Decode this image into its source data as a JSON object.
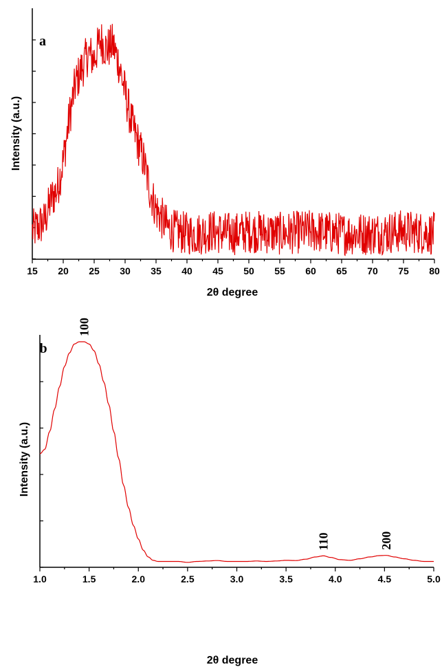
{
  "chart_data": [
    {
      "type": "line",
      "panel_label": "a",
      "xlabel": "2θ degree",
      "ylabel": "Intensity (a.u.)",
      "xlim": [
        15,
        80
      ],
      "ylim": [
        0,
        1
      ],
      "xticks": [
        "15",
        "20",
        "25",
        "30",
        "35",
        "40",
        "45",
        "50",
        "55",
        "60",
        "65",
        "70",
        "75",
        "80"
      ],
      "y_tick_count": 8,
      "y_tick_labels_shown": false,
      "grid": false,
      "series": [
        {
          "color": "#e00000",
          "x": [
            15,
            16,
            17,
            18,
            19,
            20,
            21,
            22,
            23,
            24,
            25,
            26,
            27,
            28,
            29,
            30,
            31,
            32,
            33,
            34,
            35,
            36,
            37,
            38,
            40,
            42,
            44,
            46,
            48,
            50,
            55,
            60,
            65,
            70,
            75,
            80
          ],
          "y": [
            0.11,
            0.13,
            0.15,
            0.24,
            0.28,
            0.4,
            0.58,
            0.72,
            0.78,
            0.84,
            0.82,
            0.9,
            0.86,
            0.88,
            0.8,
            0.68,
            0.56,
            0.48,
            0.4,
            0.28,
            0.2,
            0.16,
            0.12,
            0.11,
            0.1,
            0.1,
            0.11,
            0.1,
            0.1,
            0.11,
            0.1,
            0.11,
            0.1,
            0.1,
            0.11,
            0.1
          ],
          "noise_amplitude": 0.09
        }
      ]
    },
    {
      "type": "line",
      "panel_label": "b",
      "xlabel": "2θ degree",
      "ylabel": "Intensity (a.u.)",
      "xlim": [
        1.0,
        5.0
      ],
      "ylim": [
        0,
        1
      ],
      "xticks": [
        "1.0",
        "1.5",
        "2.0",
        "2.5",
        "3.0",
        "3.5",
        "4.0",
        "4.5",
        "5.0"
      ],
      "y_tick_count": 5,
      "y_tick_labels_shown": false,
      "grid": false,
      "annotations": [
        {
          "text": "100",
          "x": 1.45
        },
        {
          "text": "110",
          "x": 3.88
        },
        {
          "text": "200",
          "x": 4.52
        }
      ],
      "series": [
        {
          "color": "#e00000",
          "x": [
            1.0,
            1.05,
            1.1,
            1.15,
            1.2,
            1.25,
            1.3,
            1.35,
            1.4,
            1.45,
            1.5,
            1.55,
            1.6,
            1.65,
            1.7,
            1.75,
            1.8,
            1.85,
            1.9,
            1.95,
            2.0,
            2.05,
            2.1,
            2.15,
            2.2,
            2.25,
            2.3,
            2.4,
            2.5,
            2.6,
            2.7,
            2.8,
            2.9,
            3.0,
            3.1,
            3.2,
            3.3,
            3.4,
            3.5,
            3.6,
            3.7,
            3.8,
            3.88,
            3.95,
            4.05,
            4.15,
            4.25,
            4.35,
            4.45,
            4.52,
            4.6,
            4.7,
            4.8,
            4.9,
            5.0
          ],
          "y": [
            0.5,
            0.52,
            0.6,
            0.7,
            0.8,
            0.89,
            0.95,
            0.99,
            1.0,
            1.0,
            0.99,
            0.96,
            0.9,
            0.82,
            0.72,
            0.6,
            0.48,
            0.36,
            0.26,
            0.18,
            0.12,
            0.07,
            0.04,
            0.025,
            0.02,
            0.02,
            0.02,
            0.02,
            0.016,
            0.02,
            0.022,
            0.024,
            0.02,
            0.02,
            0.02,
            0.022,
            0.02,
            0.022,
            0.025,
            0.024,
            0.03,
            0.04,
            0.045,
            0.038,
            0.028,
            0.025,
            0.032,
            0.04,
            0.046,
            0.047,
            0.04,
            0.032,
            0.025,
            0.02,
            0.02
          ]
        }
      ]
    }
  ]
}
